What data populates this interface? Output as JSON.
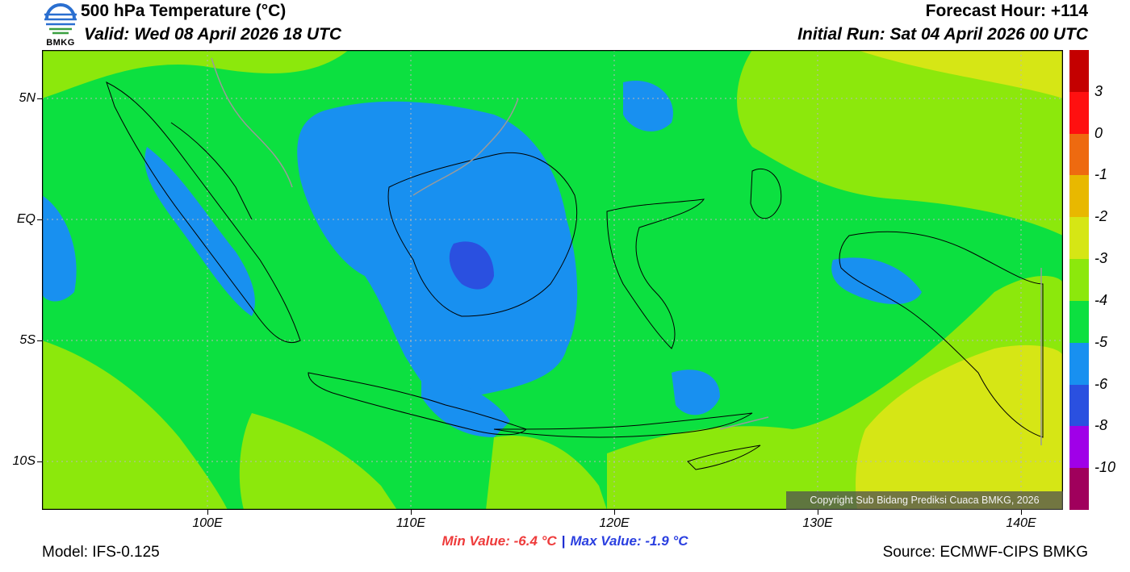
{
  "header": {
    "title": "500 hPa Temperature (°C)",
    "valid": "Valid: Wed 08 April 2026 18 UTC",
    "forecast_hour": "Forecast Hour: +114",
    "initial_run": "Initial Run: Sat 04 April 2026 00 UTC"
  },
  "logo": {
    "text": "BMKG"
  },
  "map": {
    "lat_labels": [
      "5N",
      "EQ",
      "5S",
      "10S"
    ],
    "lon_labels": [
      "100E",
      "110E",
      "120E",
      "130E",
      "140E"
    ],
    "copyright": "Copyright Sub Bidang Prediksi Cuaca BMKG, 2026"
  },
  "legend": {
    "labels": [
      "3",
      "0",
      "-1",
      "-2",
      "-3",
      "-4",
      "-5",
      "-6",
      "-8",
      "-10"
    ],
    "colors": [
      "#c40000",
      "#ff1010",
      "#ee6a10",
      "#e8b800",
      "#d6e615",
      "#8ce80c",
      "#0ce040",
      "#1890f0",
      "#2a50e0",
      "#a000e8",
      "#a0005c"
    ]
  },
  "stats": {
    "min": "Min Value: -6.4 °C",
    "max": "Max Value: -1.9 °C"
  },
  "footer": {
    "model": "Model: IFS-0.125",
    "source": "Source: ECMWF-CIPS BMKG"
  }
}
